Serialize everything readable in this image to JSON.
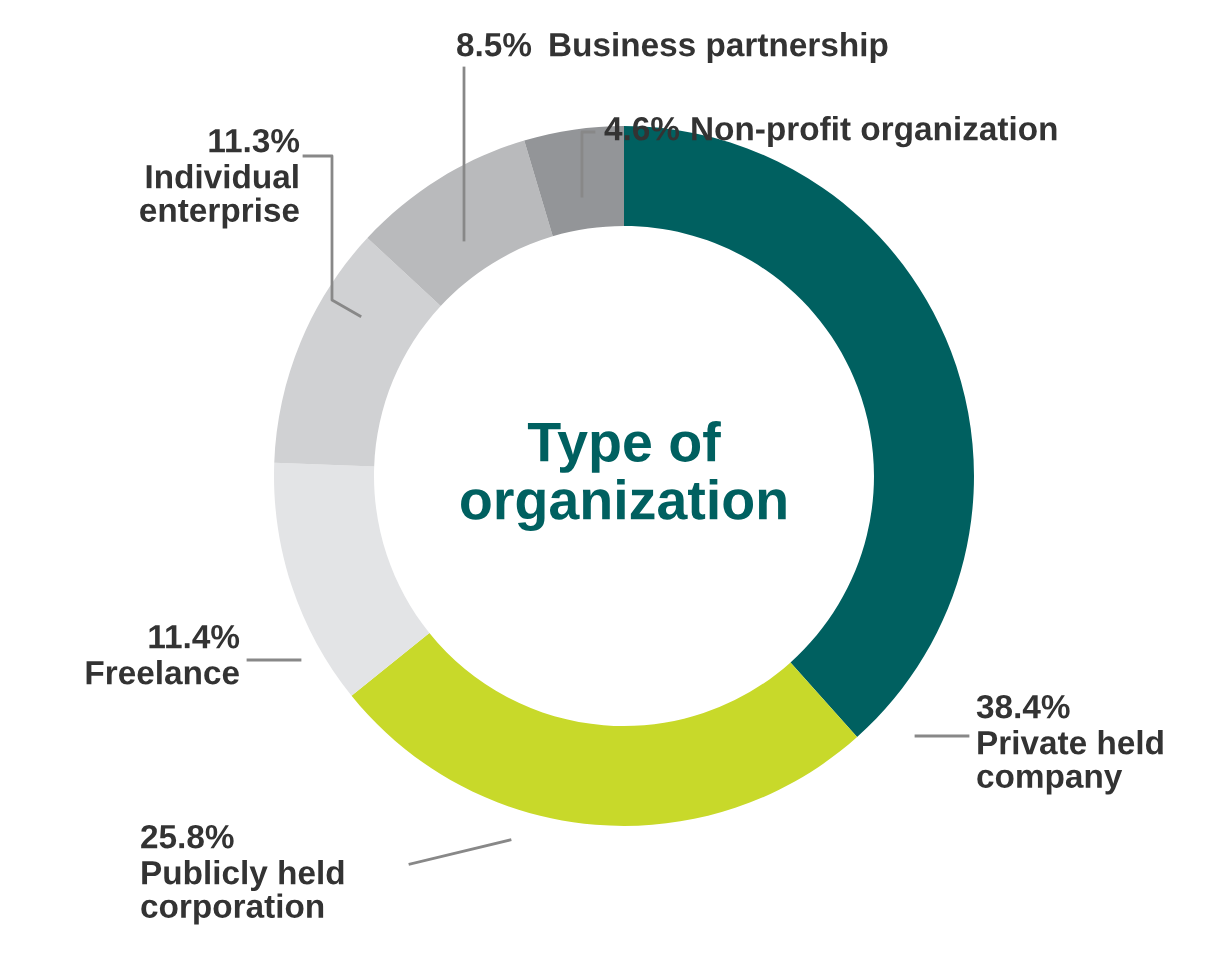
{
  "chart_data": {
    "type": "donut",
    "title": "Type of\norganization",
    "categories": [
      "Private held\ncompany",
      "Publicly held\ncorporation",
      "Freelance",
      "Individual\nenterprise",
      "Business partnership",
      "Non-profit organization"
    ],
    "values": [
      38.4,
      25.8,
      11.4,
      11.3,
      8.5,
      4.6
    ],
    "colors": [
      "#006060",
      "#c8d92a",
      "#e3e4e6",
      "#d0d1d3",
      "#b9babc",
      "#939598"
    ],
    "value_labels": [
      "38.4%",
      "25.8%",
      "11.4%",
      "11.3%",
      "8.5%",
      "4.6%"
    ],
    "legend": false
  }
}
